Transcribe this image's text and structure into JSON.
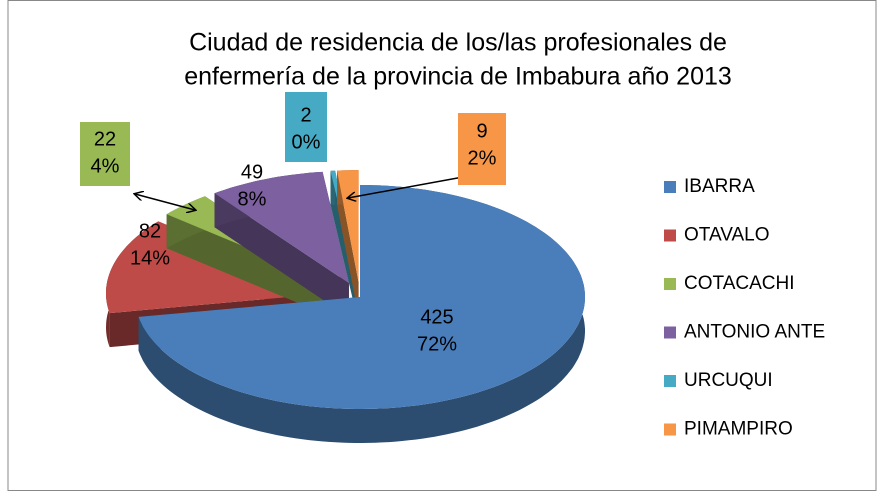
{
  "chart_data": {
    "type": "pie",
    "title": [
      "Ciudad de residencia de los/las profesionales de",
      "enfermería de la provincia de  Imbabura  año 2013"
    ],
    "categories": [
      "IBARRA",
      "OTAVALO",
      "COTACACHI",
      "ANTONIO ANTE",
      "URCUQUI",
      "PIMAMPIRO"
    ],
    "values": [
      425,
      82,
      22,
      49,
      2,
      9
    ],
    "percent_labels": [
      "72%",
      "14%",
      "4%",
      "8%",
      "0%",
      "2%"
    ],
    "colors": [
      "#4a7ebb",
      "#be4b48",
      "#98b954",
      "#7d60a0",
      "#46aac5",
      "#f79646"
    ],
    "legend": "right"
  }
}
